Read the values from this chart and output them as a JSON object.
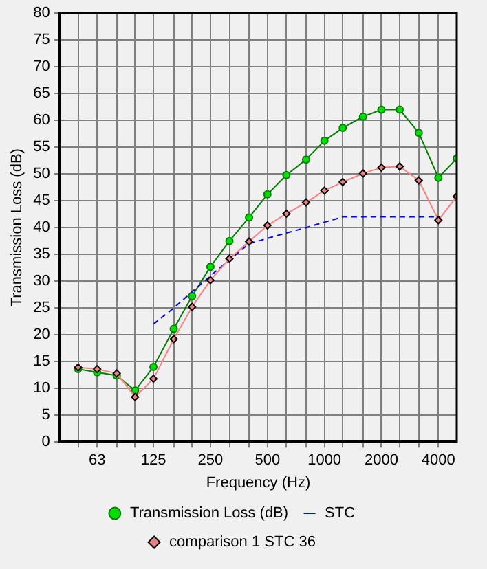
{
  "chart_data": {
    "type": "line",
    "xlabel": "Frequency (Hz)",
    "ylabel": "Transmission Loss (dB)",
    "log": "x",
    "xlim": [
      40,
      5000
    ],
    "xticks": [
      {
        "value": 50,
        "label": null
      },
      63,
      {
        "value": 80,
        "label": null
      },
      {
        "value": 100,
        "label": null
      },
      125,
      {
        "value": 160,
        "label": null
      },
      {
        "value": 200,
        "label": null
      },
      250,
      {
        "value": 315,
        "label": null
      },
      {
        "value": 400,
        "label": null
      },
      500,
      {
        "value": 630,
        "label": null
      },
      {
        "value": 800,
        "label": null
      },
      1000,
      {
        "value": 1250,
        "label": null
      },
      {
        "value": 1600,
        "label": null
      },
      2000,
      {
        "value": 2500,
        "label": null
      },
      {
        "value": 3150,
        "label": null
      },
      4000
    ],
    "ylim": [
      0,
      80
    ],
    "yticks": [
      0,
      5,
      10,
      15,
      20,
      25,
      30,
      35,
      40,
      45,
      50,
      55,
      60,
      65,
      70,
      75,
      80
    ],
    "grid": true,
    "legend": "bottom",
    "x": [
      50,
      63,
      80,
      100,
      125,
      160,
      200,
      250,
      315,
      400,
      500,
      630,
      800,
      1000,
      1250,
      1600,
      2000,
      2500,
      3150,
      4000,
      5000
    ],
    "series": [
      {
        "name": "Transmission Loss (dB)",
        "color": "#008000",
        "marker": "circle",
        "line_style": "solid",
        "values": [
          13.6,
          13,
          12.4,
          9.6,
          14,
          21.1,
          27.2,
          32.7,
          37.5,
          41.9,
          46.2,
          49.8,
          52.7,
          56.2,
          58.6,
          60.7,
          62,
          62,
          57.7,
          49.3,
          52.9
        ]
      },
      {
        "name": "STC",
        "color": "#0000ff",
        "marker": "none",
        "line_style": "dashed",
        "x": [
          125,
          160,
          200,
          250,
          315,
          400,
          500,
          630,
          800,
          1000,
          1250,
          1600,
          2000,
          2500,
          3150,
          4000
        ],
        "values": [
          22,
          25,
          28,
          31,
          34,
          37,
          38,
          39,
          40,
          41,
          42,
          42,
          42,
          42,
          42,
          42
        ]
      },
      {
        "name": "comparison 1 STC 36",
        "color": "#ff8080",
        "marker": "diamond",
        "line_style": "solid",
        "values": [
          13.9,
          13.6,
          12.8,
          8.4,
          11.8,
          19.2,
          25.2,
          30.2,
          34.2,
          37.4,
          40.4,
          42.6,
          44.7,
          46.9,
          48.5,
          50.1,
          51.2,
          51.4,
          48.8,
          41.4,
          45.8
        ]
      }
    ]
  }
}
